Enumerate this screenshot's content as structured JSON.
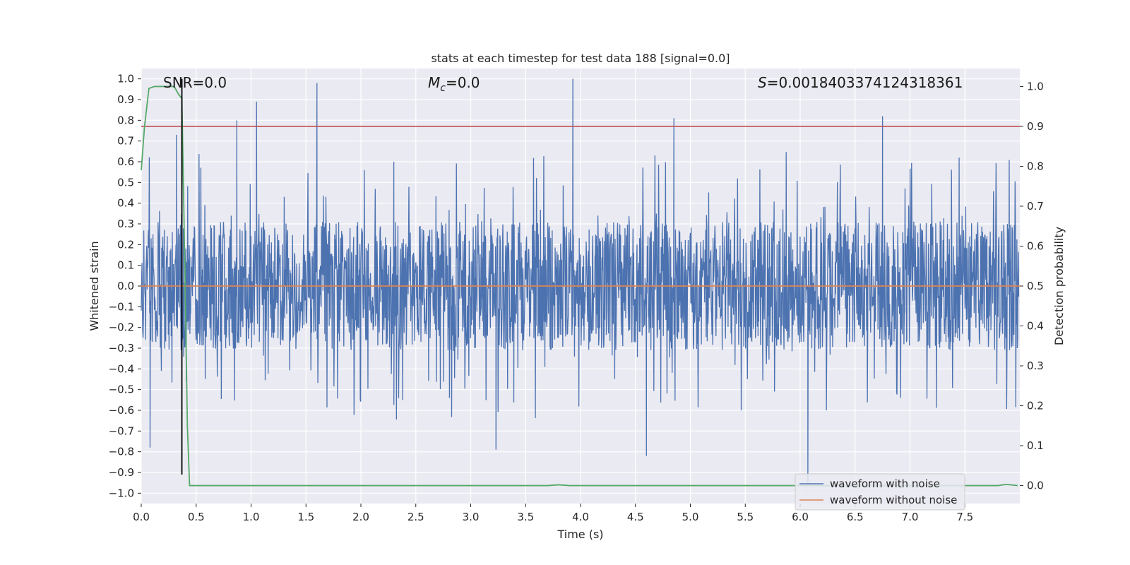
{
  "chart_data": {
    "type": "line",
    "title": "stats at each timestep for test data 188 [signal=0.0]",
    "xlabel": "Time (s)",
    "ylabel": "Whitened strain",
    "ylabel_right": "Detection probability",
    "xlim": [
      0.0,
      8.0
    ],
    "ylim": [
      -1.05,
      1.05
    ],
    "ylim_right": [
      -0.045,
      1.045
    ],
    "x_ticks": [
      "0.0",
      "0.5",
      "1.0",
      "1.5",
      "2.0",
      "2.5",
      "3.0",
      "3.5",
      "4.0",
      "4.5",
      "5.0",
      "5.5",
      "6.0",
      "6.5",
      "7.0",
      "7.5"
    ],
    "y_ticks": [
      "1.0",
      "0.9",
      "0.8",
      "0.7",
      "0.6",
      "0.5",
      "0.4",
      "0.3",
      "0.2",
      "0.1",
      "0.0",
      "−0.1",
      "−0.2",
      "−0.3",
      "−0.4",
      "−0.5",
      "−0.6",
      "−0.7",
      "−0.8",
      "−0.9",
      "−1.0"
    ],
    "y_ticks_right": [
      "1.0",
      "0.9",
      "0.8",
      "0.7",
      "0.6",
      "0.5",
      "0.4",
      "0.3",
      "0.2",
      "0.1",
      "0.0"
    ],
    "grid": true,
    "legend_position": "lower-right",
    "annotations": {
      "snr": "SNR=0.0",
      "mc_symbol": "M",
      "mc_sub": "c",
      "mc_value": "=0.0",
      "s_symbol": "S",
      "s_value": "=0.0018403374124318361"
    },
    "series": [
      {
        "name": "waveform with noise",
        "axis": "left",
        "color": "#4c72b0",
        "description_values": "dense noise, band roughly -0.35 to 0.4",
        "peaks_x": [
          0.08,
          0.32,
          0.87,
          1.05,
          1.6,
          2.3,
          3.23,
          3.93,
          4.6,
          4.85,
          6.07,
          6.75
        ],
        "peaks_y": [
          -0.78,
          0.73,
          0.8,
          0.89,
          0.98,
          0.6,
          -0.79,
          1.0,
          -0.82,
          0.81,
          -0.95,
          0.82
        ]
      },
      {
        "name": "waveform without noise",
        "axis": "left",
        "color": "#dd8452",
        "x": [
          0.0,
          8.0
        ],
        "y": [
          0.0,
          0.0
        ]
      },
      {
        "name": "",
        "axis": "right",
        "color": "#55a868",
        "x": [
          0.0,
          0.03,
          0.07,
          0.12,
          0.2,
          0.3,
          0.34,
          0.37,
          0.4,
          0.42,
          0.44,
          1.0,
          2.0,
          3.0,
          3.7,
          3.8,
          3.9,
          5.0,
          6.0,
          7.0,
          7.8,
          7.88,
          7.98
        ],
        "y": [
          0.79,
          0.9,
          0.995,
          1.0,
          1.0,
          1.0,
          0.98,
          0.97,
          0.5,
          0.15,
          0.0,
          0.0,
          0.0,
          0.0,
          0.0,
          0.002,
          0.0,
          0.0,
          0.0,
          0.0,
          0.0,
          0.003,
          0.0
        ]
      }
    ],
    "threshold_line": {
      "axis": "right",
      "y": 0.9,
      "color": "#c44e52"
    },
    "vertical_marker": {
      "x": 0.37,
      "y_from": -0.91,
      "y_to": 1.0,
      "color": "#000000"
    }
  }
}
